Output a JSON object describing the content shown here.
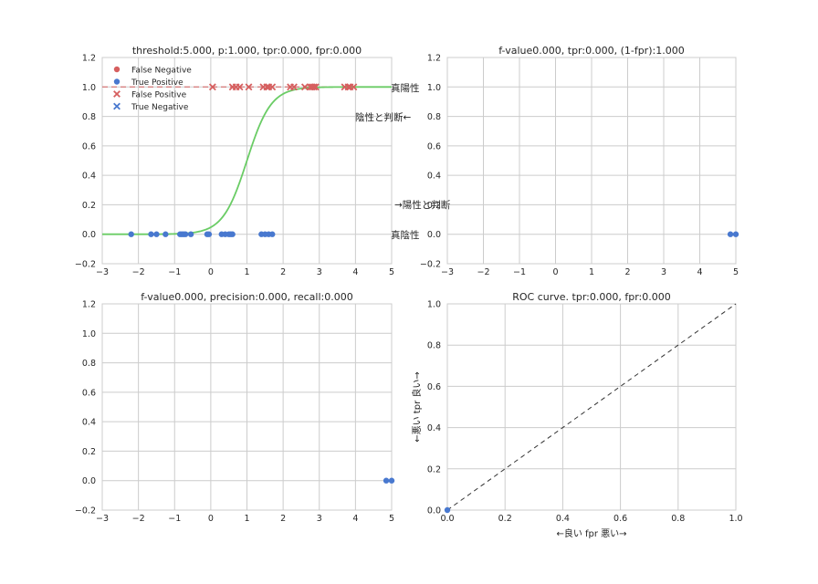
{
  "chart_data": [
    {
      "type": "scatter",
      "title": "threshold:5.000, p:1.000, tpr:0.000, fpr:0.000",
      "xlim": [
        -3,
        5
      ],
      "ylim": [
        -0.2,
        1.2
      ],
      "xticks": [
        "−3",
        "−2",
        "−1",
        "0",
        "1",
        "2",
        "3",
        "4",
        "5"
      ],
      "yticks": [
        "−0.2",
        "0.0",
        "0.2",
        "0.4",
        "0.6",
        "0.8",
        "1.0",
        "1.2"
      ],
      "grid": true,
      "legend": {
        "placement": "top-left",
        "entries": [
          {
            "label": "False Negative",
            "marker": "dot",
            "color": "#d65f5f"
          },
          {
            "label": "True Positive",
            "marker": "dot",
            "color": "#4878cf"
          },
          {
            "label": "False Positive",
            "marker": "x",
            "color": "#d65f5f"
          },
          {
            "label": "True Negative",
            "marker": "x",
            "color": "#4878cf"
          }
        ]
      },
      "series": [
        {
          "name": "True Positive",
          "marker": "dot",
          "color": "#4878cf",
          "y": 0,
          "x": [
            -2.2,
            -1.65,
            -1.5,
            -1.25,
            -0.85,
            -0.8,
            -0.75,
            -0.7,
            -0.55,
            -0.1,
            -0.05,
            0.3,
            0.4,
            0.5,
            0.55,
            0.6,
            1.4,
            1.5,
            1.6,
            1.7
          ]
        },
        {
          "name": "False Positive",
          "marker": "x",
          "color": "#d65f5f",
          "y": 1,
          "x": [
            0.05,
            0.6,
            0.7,
            0.8,
            1.05,
            1.45,
            1.55,
            1.6,
            1.7,
            2.2,
            2.3,
            2.6,
            2.75,
            2.8,
            2.85,
            2.9,
            3.7,
            3.8,
            3.85,
            3.95
          ]
        }
      ],
      "curve": {
        "type": "sigmoid",
        "center": 1.0,
        "slope": 3.0,
        "color": "#6acc65",
        "x_range": [
          -3,
          5
        ]
      },
      "reference_line": {
        "y": 1.0,
        "style": "dashed",
        "color": "#d65f5f"
      },
      "annotations": {
        "true_positive": "真陽性",
        "judged_negative": "陰性と判断←",
        "judged_positive": "→陽性と判断",
        "true_negative": "真陰性"
      }
    },
    {
      "type": "line",
      "title": "f-value0.000,  tpr:0.000, (1-fpr):1.000",
      "xlim": [
        -3,
        5
      ],
      "ylim": [
        -0.2,
        1.2
      ],
      "xticks": [
        "−3",
        "−2",
        "−1",
        "0",
        "1",
        "2",
        "3",
        "4",
        "5"
      ],
      "yticks": [
        "−0.2",
        "0.0",
        "0.2",
        "0.4",
        "0.6",
        "0.8",
        "1.0",
        "1.2"
      ],
      "grid": true,
      "series": [
        {
          "marker": "dot",
          "color": "#4878cf",
          "x": [
            4.85,
            5.0
          ],
          "y": [
            0,
            0
          ]
        }
      ]
    },
    {
      "type": "line",
      "title": "f-value0.000,  precision:0.000, recall:0.000",
      "xlim": [
        -3,
        5
      ],
      "ylim": [
        -0.2,
        1.2
      ],
      "xticks": [
        "−3",
        "−2",
        "−1",
        "0",
        "1",
        "2",
        "3",
        "4",
        "5"
      ],
      "yticks": [
        "−0.2",
        "0.0",
        "0.2",
        "0.4",
        "0.6",
        "0.8",
        "1.0",
        "1.2"
      ],
      "grid": true,
      "series": [
        {
          "marker": "dot",
          "color": "#4878cf",
          "x": [
            4.85,
            5.0
          ],
          "y": [
            0,
            0
          ]
        }
      ]
    },
    {
      "type": "line",
      "title": "ROC curve. tpr:0.000, fpr:0.000",
      "xlabel": "←良い     fpr       悪い→",
      "ylabel": "←悪い     tpr       良い→",
      "xlim": [
        0,
        1
      ],
      "ylim": [
        0,
        1
      ],
      "xticks": [
        "0.0",
        "0.2",
        "0.4",
        "0.6",
        "0.8",
        "1.0"
      ],
      "yticks": [
        "0.0",
        "0.2",
        "0.4",
        "0.6",
        "0.8",
        "1.0"
      ],
      "grid": true,
      "series": [
        {
          "marker": "dot",
          "color": "#4878cf",
          "x": [
            0.0
          ],
          "y": [
            0.0
          ]
        }
      ],
      "diagonal": {
        "x": [
          0,
          1
        ],
        "y": [
          0,
          1
        ],
        "style": "dashed",
        "color": "#333333"
      }
    }
  ]
}
